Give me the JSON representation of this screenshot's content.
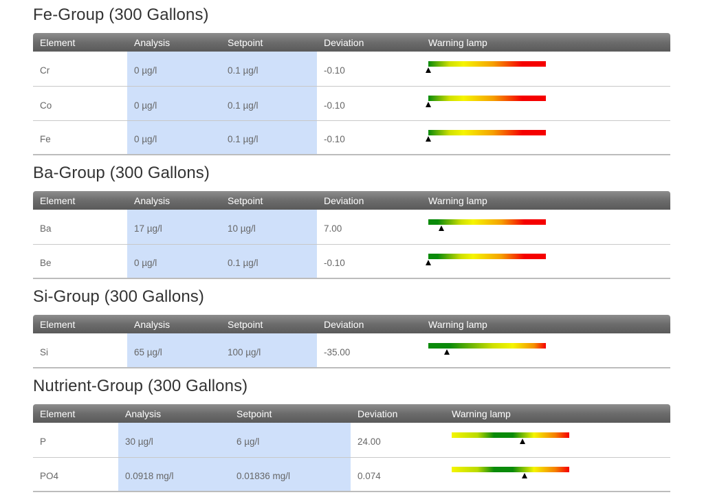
{
  "columns": {
    "element": "Element",
    "analysis": "Analysis",
    "setpoint": "Setpoint",
    "deviation": "Deviation",
    "warning": "Warning lamp"
  },
  "colors": {
    "header_bg": "#6c6c6c",
    "highlight_bg": "#cfe0fa",
    "lamp_green": "#0a8a0a",
    "lamp_yellow": "#f5f500",
    "lamp_red": "#f50000"
  },
  "groups": [
    {
      "title": "Fe-Group (300 Gallons)",
      "lamp_style": "one-sided",
      "rows": [
        {
          "element": "Cr",
          "analysis": "0 µg/l",
          "setpoint": "0.1 µg/l",
          "deviation": "-0.10",
          "level": 0.0
        },
        {
          "element": "Co",
          "analysis": "0 µg/l",
          "setpoint": "0.1 µg/l",
          "deviation": "-0.10",
          "level": 0.0
        },
        {
          "element": "Fe",
          "analysis": "0 µg/l",
          "setpoint": "0.1 µg/l",
          "deviation": "-0.10",
          "level": 0.0
        }
      ]
    },
    {
      "title": "Ba-Group (300 Gallons)",
      "lamp_style": "one-sided-green",
      "rows": [
        {
          "element": "Ba",
          "analysis": "17 µg/l",
          "setpoint": "10 µg/l",
          "deviation": "7.00",
          "level": 0.11
        },
        {
          "element": "Be",
          "analysis": "0 µg/l",
          "setpoint": "0.1 µg/l",
          "deviation": "-0.10",
          "level": 0.0
        }
      ]
    },
    {
      "title": "Si-Group (300 Gallons)",
      "lamp_style": "one-sided-wide-green",
      "rows": [
        {
          "element": "Si",
          "analysis": "65 µg/l",
          "setpoint": "100 µg/l",
          "deviation": "-35.00",
          "level": 0.16
        }
      ]
    },
    {
      "title": "Nutrient-Group (300 Gallons)",
      "lamp_style": "two-sided",
      "rows": [
        {
          "element": "P",
          "analysis": "30 µg/l",
          "setpoint": "6 µg/l",
          "deviation": "24.00",
          "level": 0.6
        },
        {
          "element": "PO4",
          "analysis": "0.0918 mg/l",
          "setpoint": "0.01836 mg/l",
          "deviation": "0.074",
          "level": 0.62
        }
      ]
    }
  ]
}
